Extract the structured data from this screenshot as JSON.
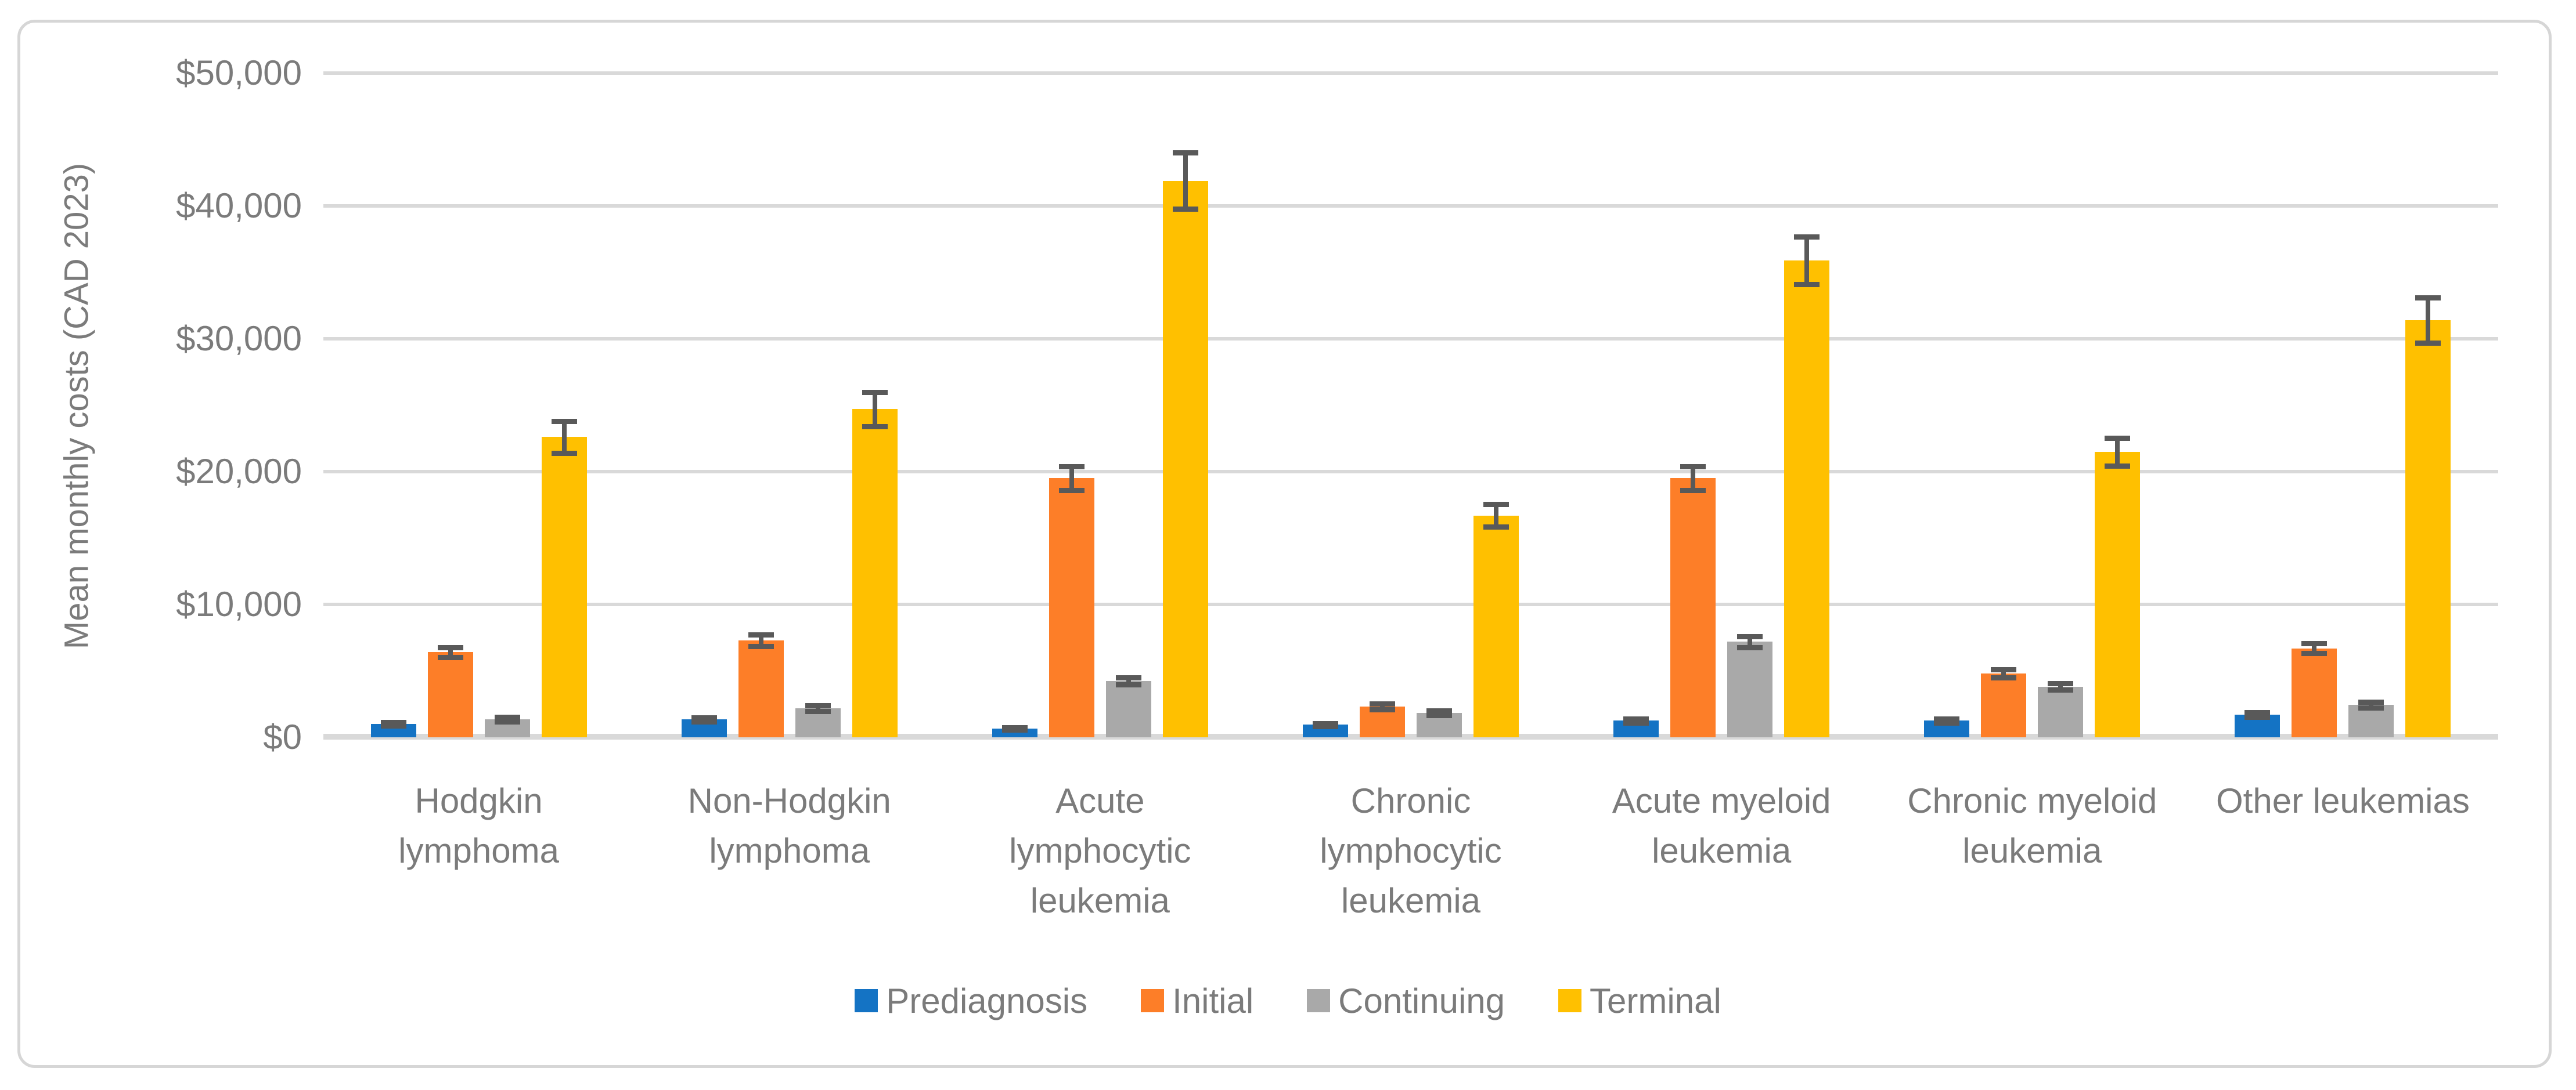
{
  "chart_data": {
    "type": "bar",
    "title": "",
    "xlabel": "",
    "ylabel": "Mean monthly costs (CAD 2023)",
    "ylim": [
      0,
      50000
    ],
    "ytick_step": 10000,
    "ytick_labels": [
      "$0",
      "$10,000",
      "$20,000",
      "$30,000",
      "$40,000",
      "$50,000"
    ],
    "grid": true,
    "legend_position": "bottom",
    "categories": [
      "Hodgkin lymphoma",
      "Non-Hodgkin lymphoma",
      "Acute lymphocytic leukemia",
      "Chronic lymphocytic leukemia",
      "Acute myeloid leukemia",
      "Chronic myeloid leukemia",
      "Other leukemias"
    ],
    "series": [
      {
        "name": "Prediagnosis",
        "color": "#1473C4",
        "values": [
          1000,
          1350,
          650,
          950,
          1250,
          1250,
          1700
        ],
        "errors": [
          120,
          150,
          100,
          110,
          150,
          150,
          160
        ]
      },
      {
        "name": "Initial",
        "color": "#FD7E28",
        "values": [
          6400,
          7300,
          19500,
          2300,
          19500,
          4800,
          6700
        ],
        "errors": [
          380,
          450,
          900,
          220,
          900,
          300,
          360
        ]
      },
      {
        "name": "Continuing",
        "color": "#A9A9A9",
        "values": [
          1350,
          2200,
          4250,
          1850,
          7200,
          3800,
          2450
        ],
        "errors": [
          160,
          220,
          260,
          180,
          420,
          240,
          220
        ]
      },
      {
        "name": "Terminal",
        "color": "#FFC000",
        "values": [
          22600,
          24700,
          41900,
          16700,
          35900,
          21500,
          31400
        ],
        "errors": [
          1200,
          1300,
          2100,
          850,
          1800,
          1050,
          1700
        ]
      }
    ],
    "error_bar_color": "#595959",
    "gridline_color": "#D9D9D9",
    "axis_line_color": "#D9D9D9",
    "text_color": "#7B7B7B",
    "border_color": "#D6D6D6",
    "background_color": "#FFFFFF"
  }
}
